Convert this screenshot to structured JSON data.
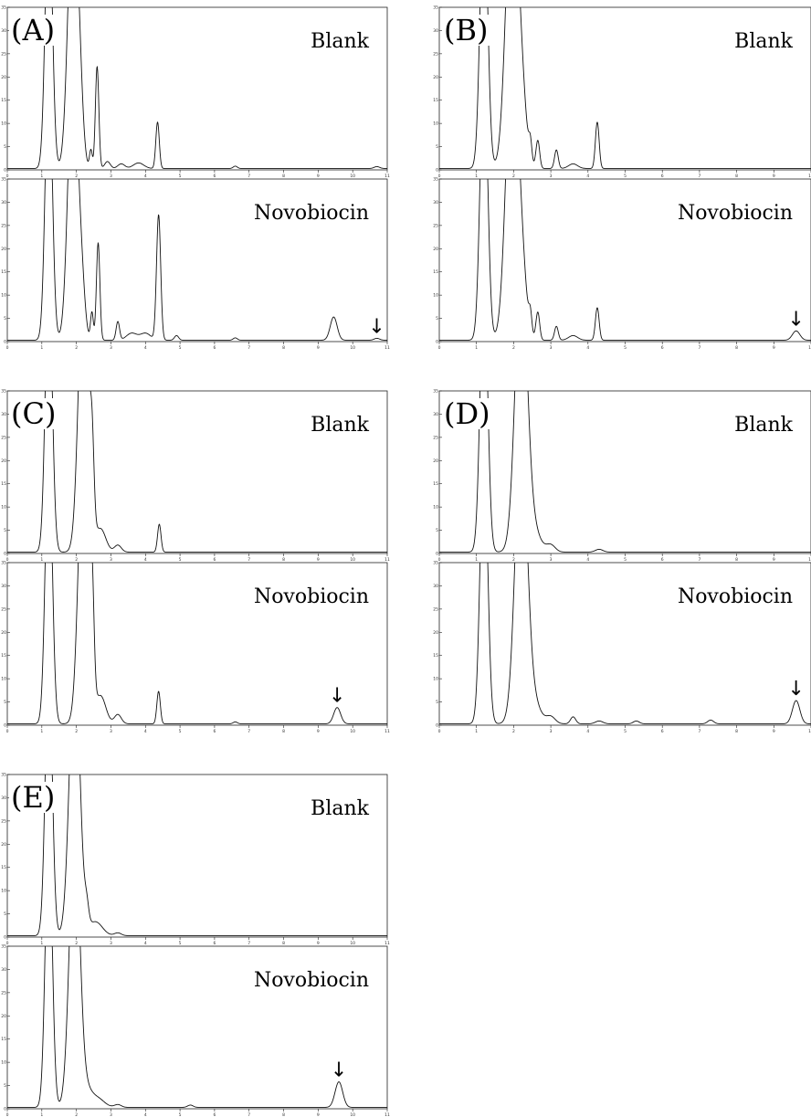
{
  "figure": {
    "panels": [
      {
        "letter": "(A)",
        "top_label": "Blank",
        "bottom_label": "Novobiocin",
        "arrow": "↓"
      },
      {
        "letter": "(B)",
        "top_label": "Blank",
        "bottom_label": "Novobiocin",
        "arrow": "↓"
      },
      {
        "letter": "(C)",
        "top_label": "Blank",
        "bottom_label": "Novobiocin",
        "arrow": "↓"
      },
      {
        "letter": "(D)",
        "top_label": "Blank",
        "bottom_label": "Novobiocin",
        "arrow": "↓"
      },
      {
        "letter": "(E)",
        "top_label": "Blank",
        "bottom_label": "Novobiocin",
        "arrow": "↓"
      }
    ]
  },
  "chart_data": [
    {
      "panel": "(A)",
      "type": "line",
      "xlim": [
        0,
        11
      ],
      "ylim": [
        0,
        35
      ],
      "xticks": [
        0,
        1,
        2,
        3,
        4,
        5,
        6,
        7,
        8,
        9,
        10,
        11
      ],
      "yticks": [
        0,
        5,
        10,
        15,
        20,
        25,
        30,
        35
      ],
      "series": [
        {
          "name": "Blank",
          "peaks": [
            [
              1.2,
              60,
              0.1
            ],
            [
              1.9,
              60,
              0.14
            ],
            [
              2.1,
              10,
              0.1
            ],
            [
              2.42,
              4,
              0.04
            ],
            [
              2.6,
              22,
              0.05
            ],
            [
              2.9,
              1.5,
              0.08
            ],
            [
              3.3,
              1,
              0.1
            ],
            [
              3.8,
              1.2,
              0.15
            ],
            [
              4.35,
              10,
              0.05
            ],
            [
              6.6,
              0.5,
              0.06
            ],
            [
              10.7,
              0.4,
              0.08
            ]
          ]
        },
        {
          "name": "Novobiocin",
          "peaks": [
            [
              1.2,
              60,
              0.1
            ],
            [
              1.9,
              60,
              0.14
            ],
            [
              2.15,
              10,
              0.1
            ],
            [
              2.45,
              6,
              0.04
            ],
            [
              2.63,
              21,
              0.05
            ],
            [
              3.2,
              4,
              0.05
            ],
            [
              3.6,
              1.5,
              0.15
            ],
            [
              4.0,
              1.5,
              0.15
            ],
            [
              4.38,
              27,
              0.06
            ],
            [
              4.9,
              1,
              0.06
            ],
            [
              6.6,
              0.5,
              0.06
            ],
            [
              9.45,
              5,
              0.1
            ],
            [
              10.7,
              0.4,
              0.08
            ]
          ]
        }
      ]
    },
    {
      "panel": "(B)",
      "type": "line",
      "xlim": [
        0,
        10
      ],
      "ylim": [
        0,
        35
      ],
      "xticks": [
        0,
        1,
        2,
        3,
        4,
        5,
        6,
        7,
        8,
        9,
        10
      ],
      "yticks": [
        0,
        5,
        10,
        15,
        20,
        25,
        30,
        35
      ],
      "series": [
        {
          "name": "Blank",
          "peaks": [
            [
              1.2,
              60,
              0.1
            ],
            [
              1.95,
              60,
              0.16
            ],
            [
              2.2,
              14,
              0.14
            ],
            [
              2.45,
              4,
              0.04
            ],
            [
              2.65,
              6,
              0.05
            ],
            [
              3.15,
              4,
              0.05
            ],
            [
              3.6,
              1,
              0.12
            ],
            [
              4.25,
              10,
              0.05
            ]
          ]
        },
        {
          "name": "Novobiocin",
          "peaks": [
            [
              1.2,
              60,
              0.1
            ],
            [
              1.95,
              60,
              0.16
            ],
            [
              2.2,
              14,
              0.14
            ],
            [
              2.45,
              4,
              0.04
            ],
            [
              2.65,
              6,
              0.05
            ],
            [
              3.15,
              3,
              0.05
            ],
            [
              3.6,
              1,
              0.12
            ],
            [
              4.25,
              7,
              0.05
            ],
            [
              9.6,
              2,
              0.1
            ]
          ]
        }
      ]
    },
    {
      "panel": "(C)",
      "type": "line",
      "xlim": [
        0,
        11
      ],
      "ylim": [
        0,
        35
      ],
      "xticks": [
        0,
        1,
        2,
        3,
        4,
        5,
        6,
        7,
        8,
        9,
        10,
        11
      ],
      "yticks": [
        0,
        5,
        10,
        15,
        20,
        25,
        30,
        35
      ],
      "series": [
        {
          "name": "Blank",
          "peaks": [
            [
              1.2,
              60,
              0.1
            ],
            [
              2.2,
              60,
              0.14
            ],
            [
              2.45,
              18,
              0.06
            ],
            [
              2.7,
              5,
              0.15
            ],
            [
              3.2,
              1.5,
              0.1
            ],
            [
              4.4,
              6,
              0.05
            ]
          ]
        },
        {
          "name": "Novobiocin",
          "peaks": [
            [
              1.2,
              60,
              0.1
            ],
            [
              2.2,
              60,
              0.14
            ],
            [
              2.45,
              24,
              0.06
            ],
            [
              2.7,
              6,
              0.15
            ],
            [
              3.2,
              2,
              0.1
            ],
            [
              4.38,
              7,
              0.05
            ],
            [
              6.6,
              0.4,
              0.06
            ],
            [
              9.55,
              3.5,
              0.1
            ]
          ]
        }
      ]
    },
    {
      "panel": "(D)",
      "type": "line",
      "xlim": [
        0,
        10
      ],
      "ylim": [
        0,
        35
      ],
      "xticks": [
        0,
        1,
        2,
        3,
        4,
        5,
        6,
        7,
        8,
        9,
        10
      ],
      "yticks": [
        0,
        5,
        10,
        15,
        20,
        25,
        30,
        35
      ],
      "series": [
        {
          "name": "Blank",
          "peaks": [
            [
              1.2,
              60,
              0.1
            ],
            [
              2.2,
              60,
              0.16
            ],
            [
              2.5,
              5,
              0.2
            ],
            [
              3.0,
              1.5,
              0.12
            ],
            [
              4.3,
              0.6,
              0.1
            ]
          ]
        },
        {
          "name": "Novobiocin",
          "peaks": [
            [
              1.2,
              60,
              0.1
            ],
            [
              2.2,
              60,
              0.16
            ],
            [
              2.5,
              5,
              0.2
            ],
            [
              3.0,
              1.5,
              0.12
            ],
            [
              3.6,
              1.5,
              0.07
            ],
            [
              4.3,
              0.6,
              0.1
            ],
            [
              5.3,
              0.6,
              0.08
            ],
            [
              7.3,
              0.8,
              0.08
            ],
            [
              9.6,
              5,
              0.1
            ]
          ]
        }
      ]
    },
    {
      "panel": "(E)",
      "type": "line",
      "xlim": [
        0,
        11
      ],
      "ylim": [
        0,
        35
      ],
      "xticks": [
        0,
        1,
        2,
        3,
        4,
        5,
        6,
        7,
        8,
        9,
        10,
        11
      ],
      "yticks": [
        0,
        5,
        10,
        15,
        20,
        25,
        30,
        35
      ],
      "series": [
        {
          "name": "Blank",
          "peaks": [
            [
              1.2,
              60,
              0.1
            ],
            [
              1.95,
              60,
              0.15
            ],
            [
              2.3,
              4,
              0.06
            ],
            [
              2.55,
              3,
              0.2
            ],
            [
              3.2,
              0.6,
              0.1
            ]
          ]
        },
        {
          "name": "Novobiocin",
          "peaks": [
            [
              1.2,
              60,
              0.1
            ],
            [
              1.95,
              60,
              0.15
            ],
            [
              2.3,
              3,
              0.15
            ],
            [
              2.6,
              2,
              0.2
            ],
            [
              3.2,
              0.6,
              0.1
            ],
            [
              5.3,
              0.5,
              0.08
            ],
            [
              9.6,
              5.5,
              0.11
            ]
          ]
        }
      ]
    }
  ]
}
